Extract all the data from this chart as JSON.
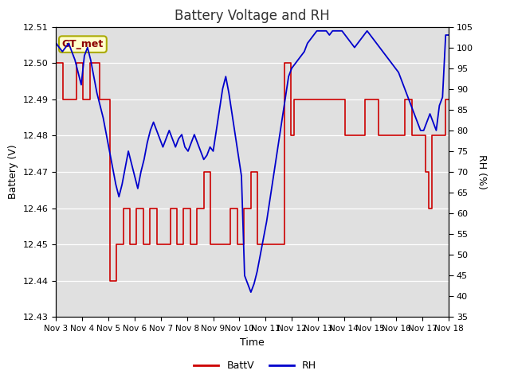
{
  "title": "Battery Voltage and RH",
  "xlabel": "Time",
  "ylabel_left": "Battery (V)",
  "ylabel_right": "RH (%)",
  "ylim_left": [
    12.43,
    12.51
  ],
  "ylim_right": [
    35,
    105
  ],
  "yticks_left": [
    12.43,
    12.44,
    12.45,
    12.46,
    12.47,
    12.48,
    12.49,
    12.5,
    12.51
  ],
  "yticks_right": [
    35,
    40,
    45,
    50,
    55,
    60,
    65,
    70,
    75,
    80,
    85,
    90,
    95,
    100,
    105
  ],
  "xtick_labels": [
    "Nov 3",
    "Nov 4",
    "Nov 5",
    "Nov 6",
    "Nov 7",
    "Nov 8",
    "Nov 9",
    "Nov 10",
    "Nov 11",
    "Nov 12",
    "Nov 13",
    "Nov 14",
    "Nov 15",
    "Nov 16",
    "Nov 17",
    "Nov 18"
  ],
  "legend_label_batt": "BattV",
  "legend_label_rh": "RH",
  "batt_color": "#cc0000",
  "rh_color": "#0000cc",
  "annotation_text": "GT_met",
  "annotation_color": "#8b0000",
  "annotation_bg": "#ffffcc",
  "plot_bg": "#e0e0e0",
  "title_color": "#333333",
  "batt_data": [
    12.5,
    12.5,
    12.49,
    12.49,
    12.49,
    12.49,
    12.5,
    12.5,
    12.49,
    12.49,
    12.5,
    12.5,
    12.5,
    12.49,
    12.49,
    12.49,
    12.44,
    12.44,
    12.45,
    12.45,
    12.46,
    12.46,
    12.45,
    12.45,
    12.46,
    12.46,
    12.45,
    12.45,
    12.46,
    12.46,
    12.45,
    12.45,
    12.45,
    12.45,
    12.46,
    12.46,
    12.45,
    12.45,
    12.46,
    12.46,
    12.45,
    12.45,
    12.46,
    12.46,
    12.47,
    12.47,
    12.45,
    12.45,
    12.45,
    12.45,
    12.45,
    12.45,
    12.46,
    12.46,
    12.45,
    12.45,
    12.46,
    12.46,
    12.47,
    12.47,
    12.45,
    12.45,
    12.45,
    12.45,
    12.45,
    12.45,
    12.45,
    12.45,
    12.5,
    12.5,
    12.48,
    12.49,
    12.49,
    12.49,
    12.49,
    12.49,
    12.49,
    12.49,
    12.49,
    12.49,
    12.49,
    12.49,
    12.49,
    12.49,
    12.49,
    12.49,
    12.48,
    12.48,
    12.48,
    12.48,
    12.48,
    12.48,
    12.49,
    12.49,
    12.49,
    12.49,
    12.48,
    12.48,
    12.48,
    12.48,
    12.48,
    12.48,
    12.48,
    12.48,
    12.49,
    12.49,
    12.48,
    12.48,
    12.48,
    12.48,
    12.47,
    12.46,
    12.48,
    12.48,
    12.48,
    12.48,
    12.49,
    12.49
  ],
  "rh_data": [
    101,
    100,
    99,
    100,
    101,
    99,
    97,
    94,
    91,
    98,
    100,
    97,
    93,
    89,
    86,
    83,
    79,
    75,
    71,
    67,
    64,
    67,
    71,
    75,
    72,
    69,
    66,
    70,
    73,
    77,
    80,
    82,
    80,
    78,
    76,
    78,
    80,
    78,
    76,
    78,
    79,
    76,
    75,
    77,
    79,
    77,
    75,
    73,
    74,
    76,
    75,
    80,
    85,
    90,
    93,
    89,
    84,
    79,
    74,
    69,
    45,
    43,
    41,
    43,
    46,
    50,
    54,
    58,
    63,
    68,
    73,
    78,
    83,
    88,
    93,
    95,
    96,
    97,
    98,
    99,
    101,
    102,
    103,
    104,
    104,
    104,
    104,
    103,
    104,
    104,
    104,
    104,
    103,
    102,
    101,
    100,
    101,
    102,
    103,
    104,
    103,
    102,
    101,
    100,
    99,
    98,
    97,
    96,
    95,
    94,
    92,
    90,
    88,
    86,
    84,
    82,
    80,
    80,
    82,
    84,
    82,
    80,
    86,
    88,
    103,
    103
  ]
}
